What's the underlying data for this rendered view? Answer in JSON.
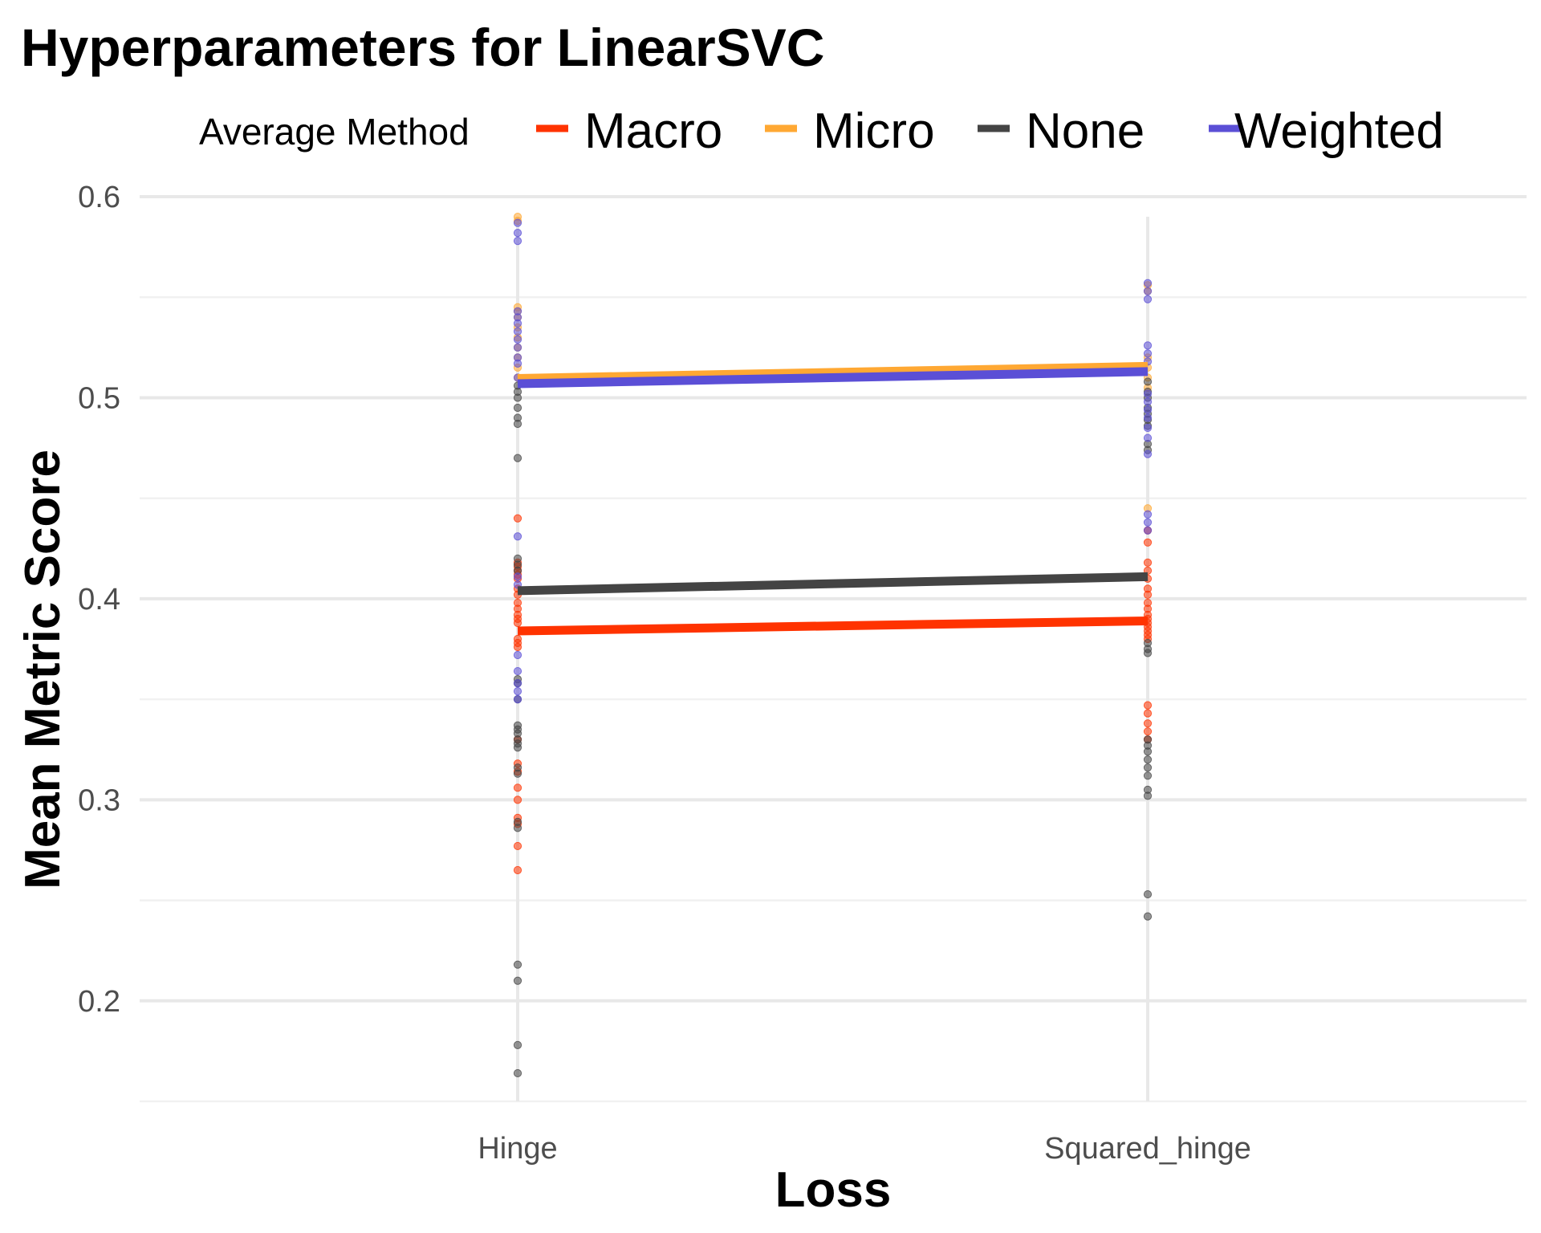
{
  "chart_data": {
    "type": "line",
    "title": "Hyperparameters for LinearSVC",
    "xlabel": "Loss",
    "ylabel": "Mean Metric Score",
    "categories": [
      "Hinge",
      "Squared_hinge"
    ],
    "ylim": [
      0.15,
      0.61
    ],
    "yticks": [
      0.2,
      0.3,
      0.4,
      0.5,
      0.6
    ],
    "grid": true,
    "legend": {
      "title": "Average Method",
      "position": "top",
      "entries": [
        "Macro",
        "Micro",
        "None",
        "Weighted"
      ]
    },
    "series": [
      {
        "name": "Macro",
        "color": "#ff3300",
        "values": [
          0.384,
          0.389
        ],
        "points": [
          [
            0.44,
            0.418,
            0.416,
            0.414,
            0.412,
            0.41,
            0.405,
            0.402,
            0.398,
            0.395,
            0.392,
            0.39,
            0.388,
            0.38,
            0.378,
            0.376,
            0.33,
            0.318,
            0.314,
            0.306,
            0.3,
            0.291,
            0.288,
            0.277,
            0.265
          ],
          [
            0.434,
            0.428,
            0.418,
            0.414,
            0.41,
            0.405,
            0.402,
            0.398,
            0.395,
            0.392,
            0.39,
            0.388,
            0.386,
            0.384,
            0.382,
            0.38,
            0.347,
            0.343,
            0.338,
            0.334,
            0.33
          ]
        ]
      },
      {
        "name": "Micro",
        "color": "#ffa833",
        "values": [
          0.509,
          0.515
        ],
        "points": [
          [
            0.59,
            0.588,
            0.545,
            0.543,
            0.54,
            0.535,
            0.53,
            0.525,
            0.52,
            0.515,
            0.51
          ],
          [
            0.556,
            0.553,
            0.52,
            0.515,
            0.51,
            0.505,
            0.445
          ]
        ]
      },
      {
        "name": "None",
        "color": "#444444",
        "values": [
          0.404,
          0.411
        ],
        "points": [
          [
            0.506,
            0.503,
            0.5,
            0.495,
            0.49,
            0.487,
            0.47,
            0.42,
            0.417,
            0.414,
            0.36,
            0.358,
            0.35,
            0.337,
            0.335,
            0.333,
            0.33,
            0.328,
            0.326,
            0.316,
            0.313,
            0.289,
            0.286,
            0.218,
            0.21,
            0.178,
            0.164
          ],
          [
            0.508,
            0.503,
            0.5,
            0.495,
            0.492,
            0.489,
            0.486,
            0.477,
            0.474,
            0.378,
            0.375,
            0.373,
            0.33,
            0.327,
            0.324,
            0.32,
            0.316,
            0.312,
            0.305,
            0.302,
            0.253,
            0.242
          ]
        ]
      },
      {
        "name": "Weighted",
        "color": "#5b4fd6",
        "values": [
          0.507,
          0.513
        ],
        "points": [
          [
            0.587,
            0.582,
            0.578,
            0.543,
            0.54,
            0.537,
            0.533,
            0.529,
            0.525,
            0.52,
            0.517,
            0.51,
            0.431,
            0.411,
            0.407,
            0.372,
            0.364,
            0.358,
            0.354,
            0.35
          ],
          [
            0.557,
            0.553,
            0.549,
            0.526,
            0.522,
            0.518,
            0.502,
            0.498,
            0.494,
            0.49,
            0.485,
            0.48,
            0.472,
            0.442,
            0.438,
            0.434
          ]
        ]
      }
    ]
  }
}
